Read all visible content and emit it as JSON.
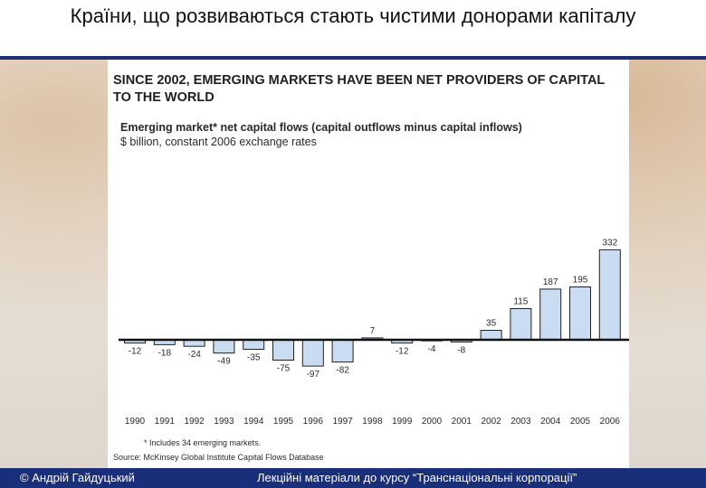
{
  "slide": {
    "title": "Країни, що розвиваються стають чистими донорами капіталу"
  },
  "footer": {
    "author": "© Андрій Гайдуцький",
    "course": "Лекційні матеріали до курсу “Транснаціональні корпорації”"
  },
  "colors": {
    "bar_fill": "#c9dcf2",
    "bar_stroke": "#222222",
    "headline": "#1f1f1f",
    "footer_bg": "#1a2f7a",
    "title_rule": "#1d2f6e"
  },
  "chart_data": {
    "type": "bar",
    "headline": "SINCE 2002, EMERGING MARKETS HAVE BEEN NET PROVIDERS OF CAPITAL TO THE WORLD",
    "title": "Emerging market* net capital flows (capital outflows minus capital inflows)",
    "subtitle": "$ billion, constant 2006 exchange rates",
    "categories": [
      "1990",
      "1991",
      "1992",
      "1993",
      "1994",
      "1995",
      "1996",
      "1997",
      "1998",
      "1999",
      "2000",
      "2001",
      "2002",
      "2003",
      "2004",
      "2005",
      "2006"
    ],
    "values": [
      -12,
      -18,
      -24,
      -49,
      -35,
      -75,
      -97,
      -82,
      7,
      -12,
      -4,
      -8,
      35,
      115,
      187,
      195,
      332
    ],
    "data_labels": [
      "-12",
      "-18",
      "-24",
      "-49",
      "-35",
      "-75",
      "-97",
      "-82",
      "7",
      "-12",
      "-4",
      "-8",
      "35",
      "115",
      "187",
      "195",
      "332"
    ],
    "ylim": [
      -100,
      340
    ],
    "grid": false,
    "footnote": "* Includes 34 emerging markets.",
    "source": "Source: McKinsey Global Institute Capital Flows Database"
  }
}
